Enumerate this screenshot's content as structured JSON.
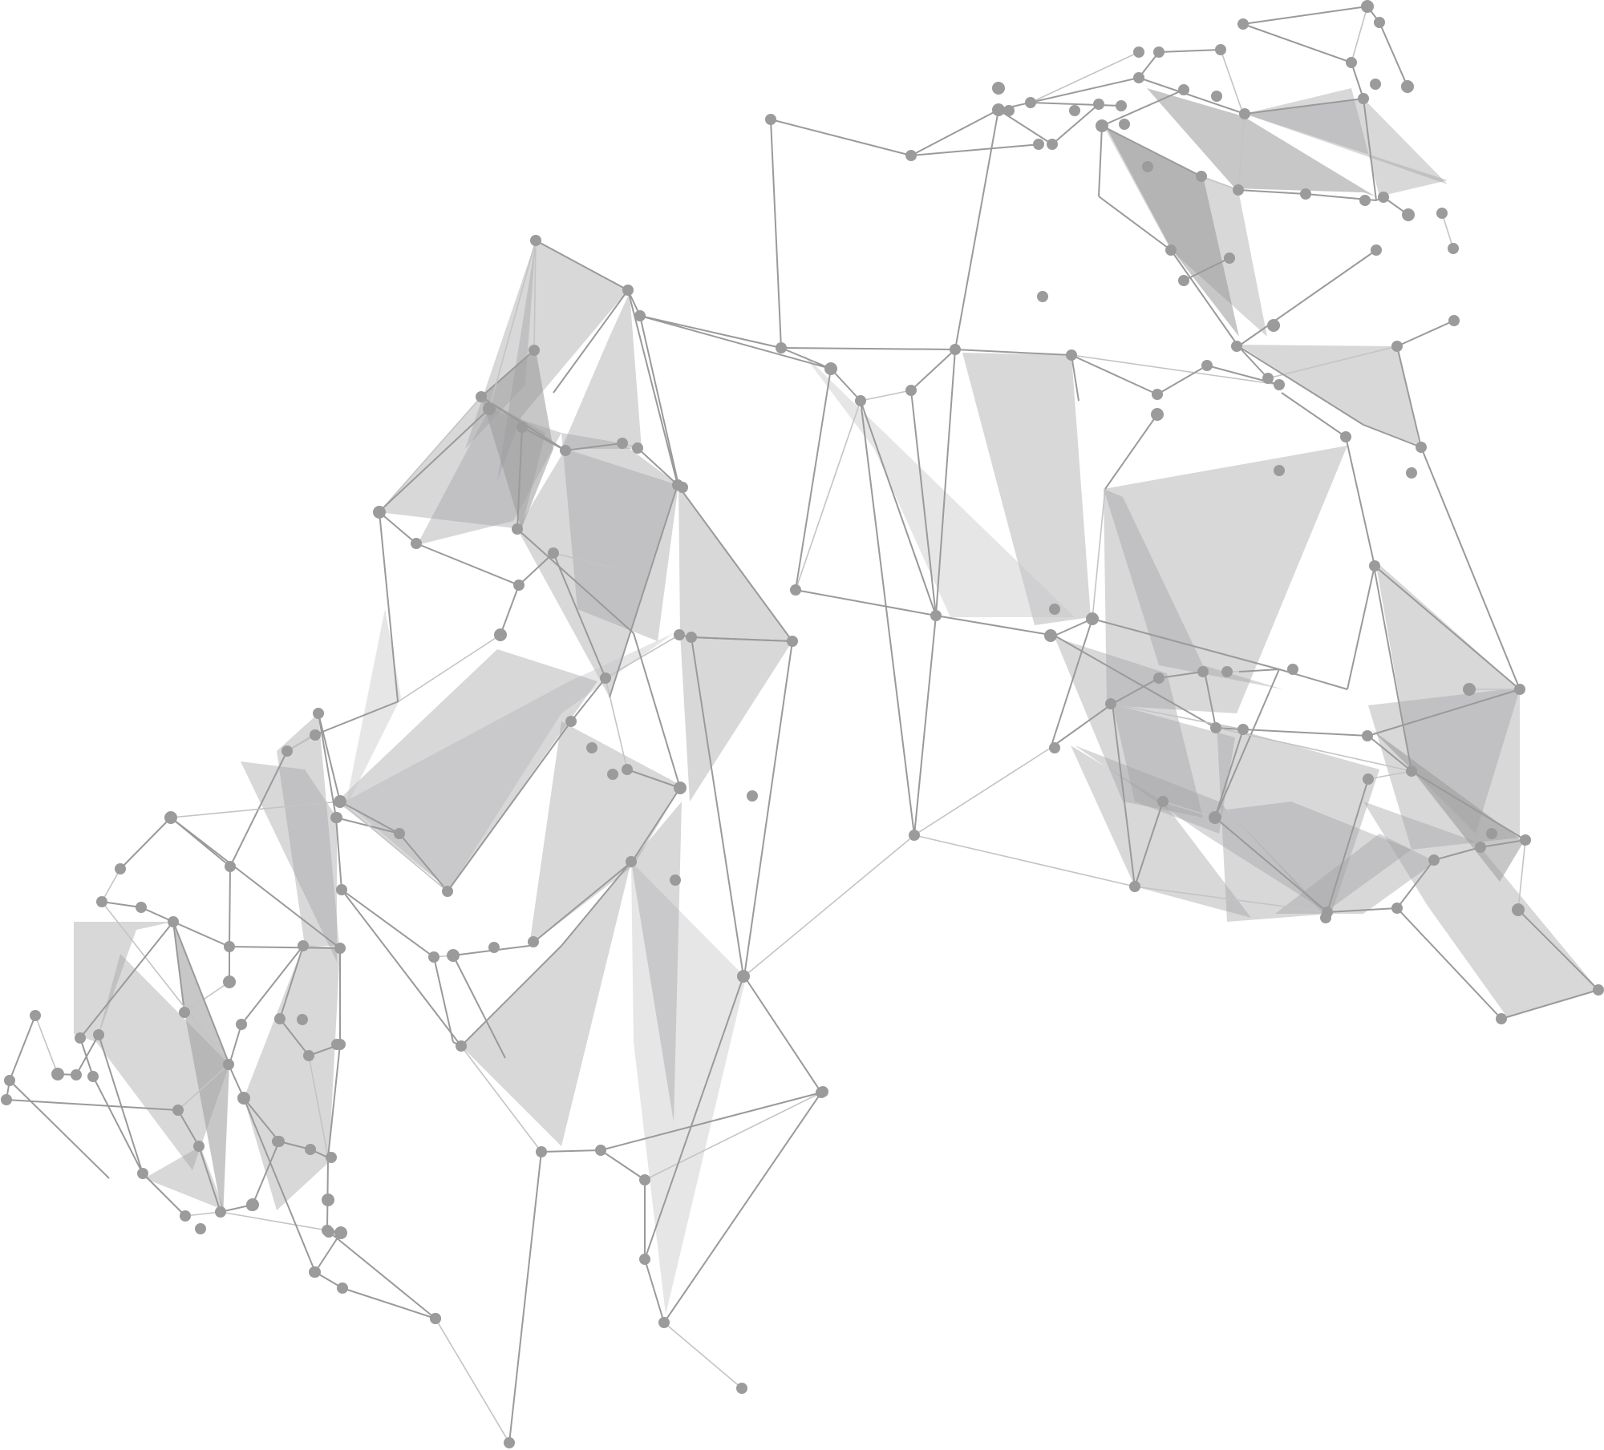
{
  "image": {
    "description_kind": "abstract-polygonal-network-graphic",
    "colors": {
      "background": "#ffffff",
      "node": "#9b9b9b",
      "edge": "#9a9a9a",
      "polygon_fill": "#a3a3a4"
    }
  }
}
